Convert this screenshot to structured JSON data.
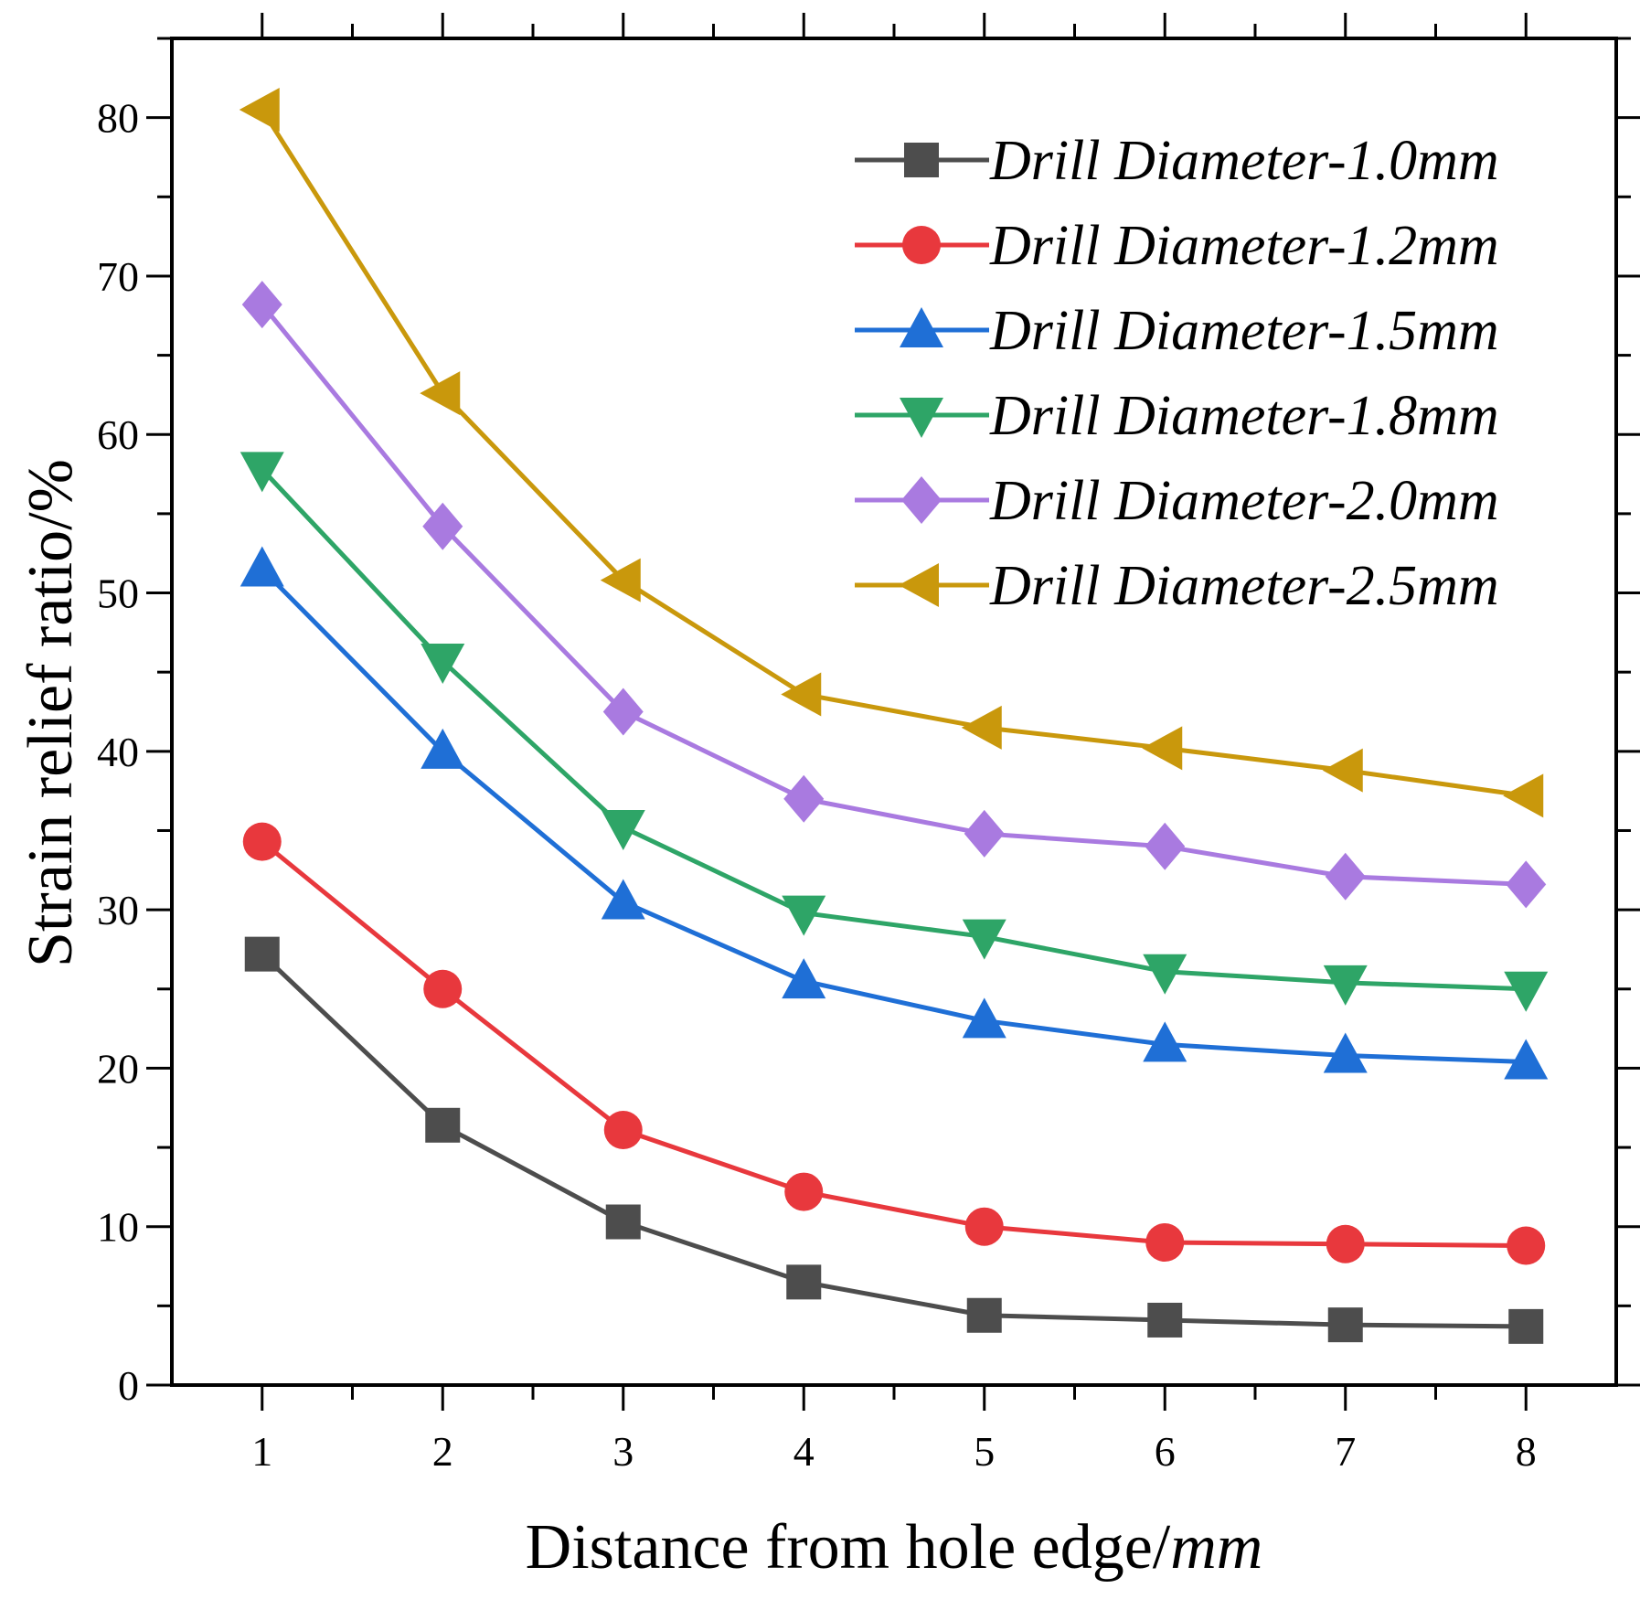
{
  "chart_data": {
    "type": "line",
    "title": "",
    "xlabel": "Distance from hole edge/",
    "xlabel_unit": "mm",
    "ylabel": "Strain relief ratio/%",
    "x": [
      1,
      2,
      3,
      4,
      5,
      6,
      7,
      8
    ],
    "x_tick_labels": [
      "1",
      "2",
      "3",
      "4",
      "5",
      "6",
      "7",
      "8"
    ],
    "xlim": [
      0.5,
      8.5
    ],
    "ylim": [
      0,
      85
    ],
    "y_ticks": [
      0,
      10,
      20,
      30,
      40,
      50,
      60,
      70,
      80
    ],
    "y_tick_labels": [
      "0",
      "10",
      "20",
      "30",
      "40",
      "50",
      "60",
      "70",
      "80"
    ],
    "grid": false,
    "legend_position": "top-right",
    "series": [
      {
        "name": "Drill Diameter-1.0mm",
        "color": "#4d4d4d",
        "marker": "square",
        "values": [
          27.2,
          16.4,
          10.3,
          6.5,
          4.4,
          4.1,
          3.8,
          3.7
        ]
      },
      {
        "name": "Drill Diameter-1.2mm",
        "color": "#e8383d",
        "marker": "circle",
        "values": [
          34.3,
          25.0,
          16.1,
          12.2,
          10.0,
          9.0,
          8.9,
          8.8
        ]
      },
      {
        "name": "Drill Diameter-1.5mm",
        "color": "#1f6fd6",
        "marker": "triangle-up",
        "values": [
          51.5,
          40.0,
          30.5,
          25.5,
          23.0,
          21.5,
          20.8,
          20.4
        ]
      },
      {
        "name": "Drill Diameter-1.8mm",
        "color": "#2ea567",
        "marker": "triangle-down",
        "values": [
          57.8,
          45.7,
          35.2,
          29.8,
          28.3,
          26.1,
          25.4,
          25.0
        ]
      },
      {
        "name": "Drill Diameter-2.0mm",
        "color": "#a97ae0",
        "marker": "diamond",
        "values": [
          68.2,
          54.2,
          42.5,
          37.0,
          34.8,
          34.0,
          32.1,
          31.6
        ]
      },
      {
        "name": "Drill Diameter-2.5mm",
        "color": "#c9980c",
        "marker": "triangle-left",
        "values": [
          80.5,
          62.6,
          50.8,
          43.6,
          41.5,
          40.2,
          38.8,
          37.2
        ]
      }
    ]
  }
}
